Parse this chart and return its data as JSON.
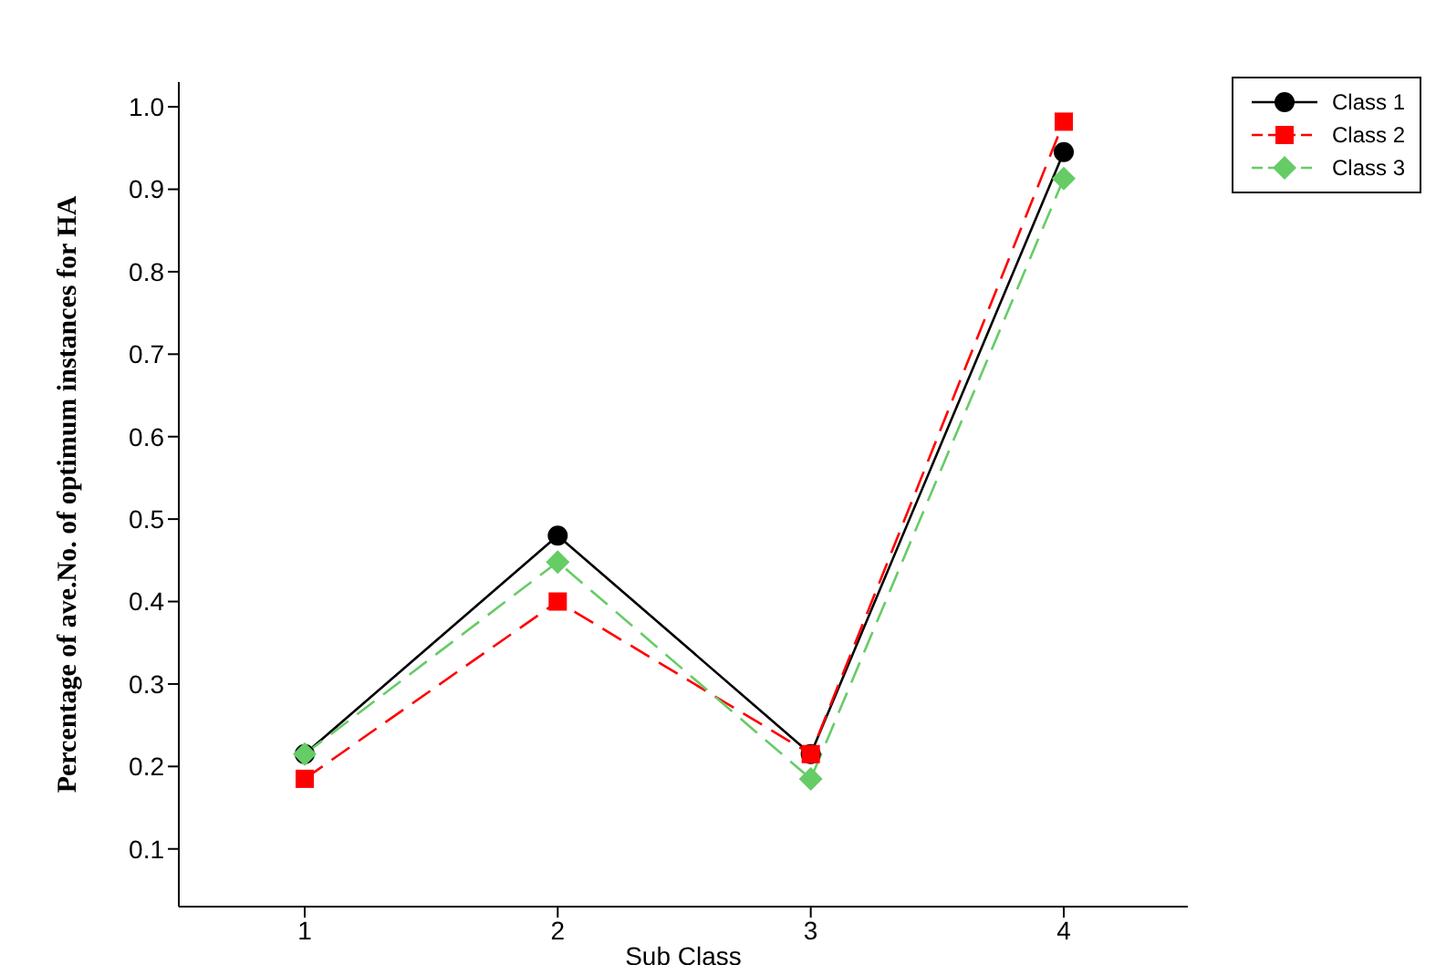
{
  "chart_data": {
    "type": "line",
    "xlabel": "Sub Class",
    "ylabel": "Percentage of ave.No. of optimum instances for HA",
    "categories": [
      "1",
      "2",
      "3",
      "4"
    ],
    "series": [
      {
        "name": "Class 1",
        "color": "#000000",
        "marker": "circle",
        "line_style": "solid",
        "values": [
          0.215,
          0.48,
          0.215,
          0.945
        ]
      },
      {
        "name": "Class 2",
        "color": "#ff0000",
        "marker": "square",
        "line_style": "dashed",
        "values": [
          0.185,
          0.4,
          0.215,
          0.982
        ]
      },
      {
        "name": "Class 3",
        "color": "#66cc66",
        "marker": "diamond",
        "line_style": "dashed",
        "values": [
          0.215,
          0.448,
          0.185,
          0.913
        ]
      }
    ],
    "ylim": [
      0.03,
      1.03
    ],
    "yticks": [
      0.1,
      0.2,
      0.3,
      0.4,
      0.5,
      0.6,
      0.7,
      0.8,
      0.9,
      {
        "value": 1,
        "label": "1.0"
      }
    ],
    "legend": "top right"
  }
}
